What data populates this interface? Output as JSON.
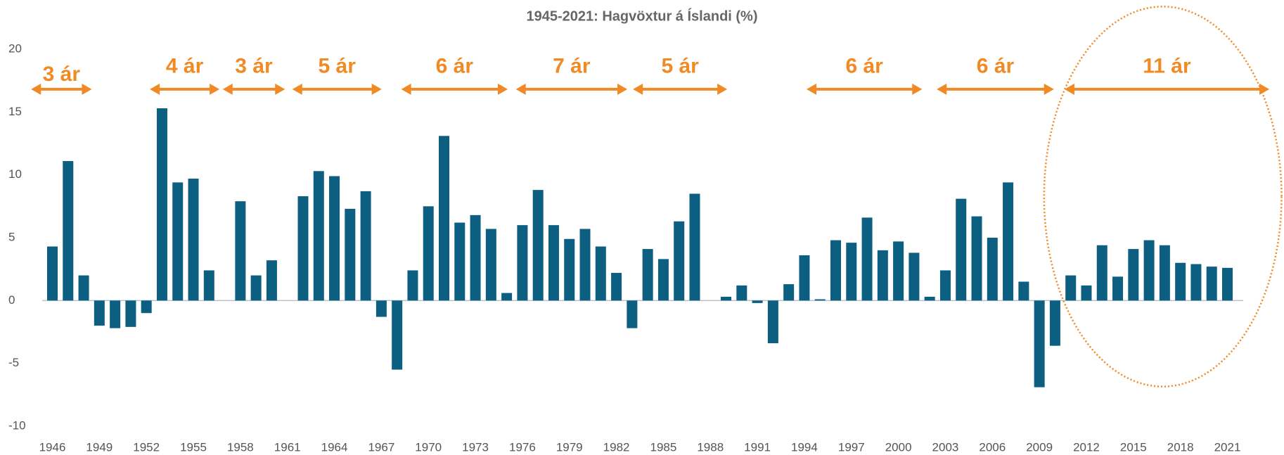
{
  "chart_data": {
    "type": "bar",
    "title": "1945-2021: Hagvöxtur á Íslandi (%)",
    "categories": [
      "1946",
      null,
      null,
      "1949",
      null,
      null,
      "1952",
      null,
      null,
      "1955",
      null,
      null,
      "1958",
      null,
      null,
      "1961",
      null,
      null,
      "1964",
      null,
      null,
      "1967",
      null,
      null,
      "1970",
      null,
      null,
      "1973",
      null,
      null,
      "1976",
      null,
      null,
      "1979",
      null,
      null,
      "1982",
      null,
      null,
      "1985",
      null,
      null,
      "1988",
      null,
      null,
      "1991",
      null,
      null,
      "1994",
      null,
      null,
      "1997",
      null,
      null,
      "2000",
      null,
      null,
      "2003",
      null,
      null,
      "2006",
      null,
      null,
      "2009",
      null,
      null,
      "2012",
      null,
      null,
      "2015",
      null,
      null,
      "2018",
      null,
      null,
      "2021"
    ],
    "values": [
      4.3,
      11.1,
      2.0,
      -2.0,
      -2.2,
      -2.1,
      -1.0,
      15.3,
      9.4,
      9.7,
      2.4,
      0,
      7.9,
      2.0,
      3.2,
      0,
      8.3,
      10.3,
      9.9,
      7.3,
      8.7,
      -1.3,
      -5.5,
      2.4,
      7.5,
      13.1,
      6.2,
      6.8,
      5.7,
      0.6,
      6.0,
      8.8,
      6.0,
      4.9,
      5.7,
      4.3,
      2.2,
      -2.2,
      4.1,
      3.3,
      6.3,
      8.5,
      0,
      0.3,
      1.2,
      -0.2,
      -3.4,
      1.3,
      3.6,
      0.1,
      4.8,
      4.6,
      6.6,
      4.0,
      4.7,
      3.8,
      0.3,
      2.4,
      8.1,
      6.7,
      5.0,
      9.4,
      1.5,
      -6.9,
      -3.6,
      2.0,
      1.2,
      4.4,
      1.9,
      4.1,
      4.8,
      4.4,
      3.0,
      2.9,
      2.7,
      2.6
    ],
    "color": "#0d5f82",
    "ylim": [
      -10,
      20
    ],
    "yticks": [
      -10,
      -5,
      0,
      5,
      10,
      15,
      20
    ],
    "grid": false,
    "annotations": [
      "3 ár",
      "4 ár",
      "3 ár",
      "5 ár",
      "6 ár",
      "7 ár",
      "5 ár",
      "6 ár",
      "6 ár",
      "11 ár"
    ],
    "annotation_color": "#f08a24"
  }
}
